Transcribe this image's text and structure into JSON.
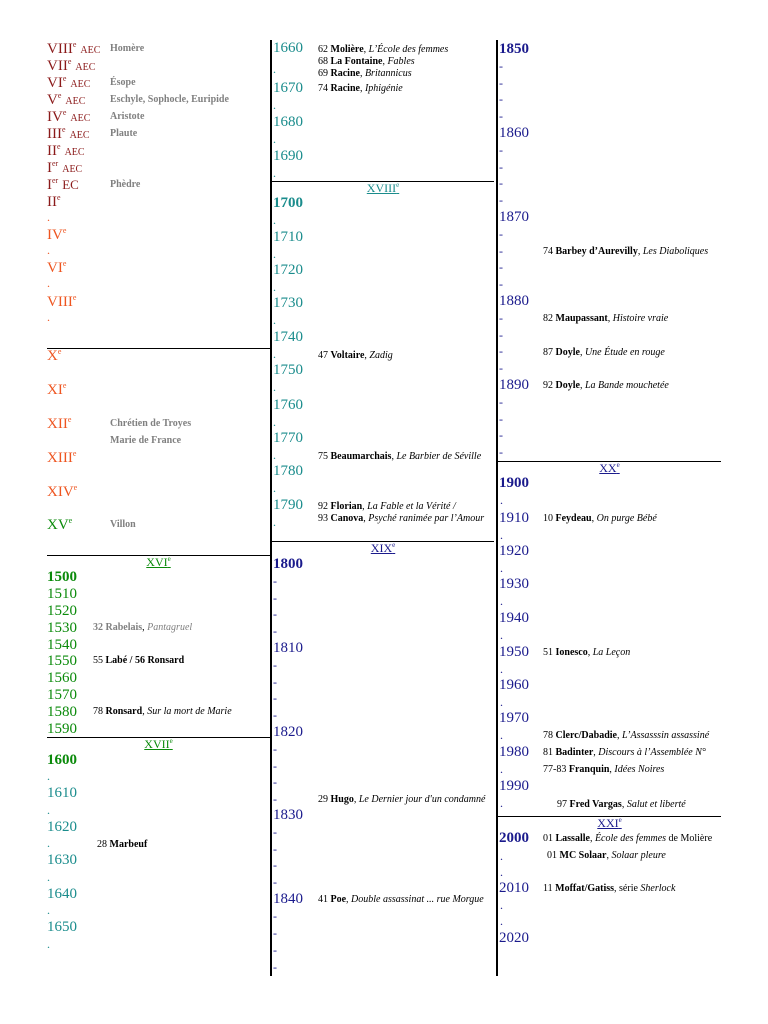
{
  "colors": {
    "dark_red": "#8b1a1a",
    "orange": "#ee5520",
    "green": "#0a8a0a",
    "teal": "#1a8c8c",
    "blue": "#1a1a8c",
    "gray": "#808080"
  },
  "col1": {
    "centuries": [
      {
        "num": "VIII",
        "sup": "e",
        "suffix": "AEC",
        "note": "Homère"
      },
      {
        "num": "VII",
        "sup": "e",
        "suffix": "AEC",
        "note": ""
      },
      {
        "num": "VI",
        "sup": "e",
        "suffix": "AEC",
        "note": "Ésope"
      },
      {
        "num": "V",
        "sup": "e",
        "suffix": "AEC",
        "note": "Eschyle, Sophocle, Euripide"
      },
      {
        "num": "IV",
        "sup": "e",
        "suffix": "AEC",
        "note": "Aristote"
      },
      {
        "num": "III",
        "sup": "e",
        "suffix": "AEC",
        "note": "Plaute"
      },
      {
        "num": "II",
        "sup": "e",
        "suffix": "AEC",
        "note": ""
      },
      {
        "num": "I",
        "sup": "er",
        "suffix": "AEC",
        "note": ""
      },
      {
        "num": "I",
        "sup": "er",
        "suffix": "EC",
        "note": "Phèdre"
      },
      {
        "num": "II",
        "sup": "e",
        "suffix": "",
        "note": ""
      },
      {
        "num": "IV",
        "sup": "e",
        "suffix": "",
        "note": ""
      },
      {
        "num": "VI",
        "sup": "e",
        "suffix": "",
        "note": ""
      },
      {
        "num": "VIII",
        "sup": "e",
        "suffix": "",
        "note": ""
      },
      {
        "num": "X",
        "sup": "e",
        "suffix": "",
        "note": ""
      },
      {
        "num": "XI",
        "sup": "e",
        "suffix": "",
        "note": ""
      },
      {
        "num": "XII",
        "sup": "e",
        "suffix": "",
        "note": "Chrétien de Troyes"
      },
      {
        "num": "",
        "sup": "",
        "suffix": "",
        "note": "Marie de France"
      },
      {
        "num": "XIII",
        "sup": "e",
        "suffix": "",
        "note": ""
      },
      {
        "num": "XIV",
        "sup": "e",
        "suffix": "",
        "note": ""
      },
      {
        "num": "XV",
        "sup": "e",
        "suffix": "",
        "note": "Villon"
      }
    ],
    "sec_xvi": "XVI",
    "years_1500s": [
      "1500",
      "1510",
      "1520",
      "1530",
      "1540",
      "1550",
      "1560",
      "1570",
      "1580",
      "1590"
    ],
    "ev_1532": {
      "yr": "32",
      "name": "Rabelais",
      "work": "Pantagruel"
    },
    "ev_1555": {
      "yr": "55",
      "name": "Labé",
      "sep": " / 56 ",
      "name2": "Ronsard"
    },
    "ev_1578": {
      "yr": "78",
      "name": "Ronsard",
      "work": "Sur la mort de Marie"
    },
    "sec_xvii": "XVII",
    "years_1600s": [
      "1600",
      "1610",
      "1620",
      "1630",
      "1640",
      "1650"
    ],
    "ev_1628": {
      "yr": "28",
      "name": "Marbeuf"
    },
    "dot": "."
  },
  "col2": {
    "years_1660": [
      "1660",
      "1670",
      "1680",
      "1690"
    ],
    "ev_1662": {
      "yr": "62",
      "name": "Molière",
      "work": "L’École des femmes"
    },
    "ev_1668": {
      "yr": "68",
      "name": "La Fontaine",
      "work": "Fables"
    },
    "ev_1669": {
      "yr": "69",
      "name": "Racine",
      "work": "Britannicus"
    },
    "ev_1674": {
      "yr": "74",
      "name": "Racine",
      "work": "Iphigénie"
    },
    "sec_xviii": "XVIII",
    "years_1700s": [
      "1700",
      "1710",
      "1720",
      "1730",
      "1740",
      "1750",
      "1760",
      "1770",
      "1780",
      "1790"
    ],
    "ev_1747": {
      "yr": "47",
      "name": "Voltaire",
      "work": "Zadig"
    },
    "ev_1775": {
      "yr": "75",
      "name": "Beaumarchais",
      "work": "Le Barbier de Séville"
    },
    "ev_1792": {
      "yr": "92",
      "name": "Florian",
      "work": "La Fable et la Vérité /"
    },
    "ev_1793": {
      "yr": "93",
      "name": "Canova",
      "work": "Psyché ranimée par l’Amour"
    },
    "sec_xix": "XIX",
    "years_1800s": [
      "1800",
      "1810",
      "1820",
      "1830",
      "1840"
    ],
    "ev_1829": {
      "yr": "29",
      "name": "Hugo",
      "work": "Le Dernier jour d'un condamné"
    },
    "ev_1841": {
      "yr": "41",
      "name": "Poe",
      "work": "Double assassinat ... rue Morgue"
    },
    "dash": "-",
    "dot": "."
  },
  "col3": {
    "years_1850s": [
      "1850",
      "1860",
      "1870",
      "1880",
      "1890"
    ],
    "ev_1874": {
      "yr": "74",
      "name": "Barbey d’Aurevilly",
      "work": "Les Diaboliques"
    },
    "ev_1882": {
      "yr": "82",
      "name": "Maupassant",
      "work": "Histoire vraie"
    },
    "ev_1887": {
      "yr": "87",
      "name": "Doyle",
      "work": "Une Étude en rouge"
    },
    "ev_1892": {
      "yr": "92",
      "name": "Doyle",
      "work": "La Bande mouchetée"
    },
    "sec_xx": "XX",
    "years_1900s": [
      "1900",
      "1910",
      "1920",
      "1930",
      "1940",
      "1950",
      "1960",
      "1970",
      "1980",
      "1990"
    ],
    "ev_1910": {
      "yr": "10",
      "name": "Feydeau",
      "work": "On purge Bébé"
    },
    "ev_1951": {
      "yr": "51",
      "name": "Ionesco",
      "work": "La Leçon"
    },
    "ev_1978": {
      "yr": "78",
      "name": "Clerc/Dabadie",
      "work": "L’Assasssin assassiné"
    },
    "ev_1981": {
      "yr": "81",
      "name": "Badinter",
      "work": "Discours à l’Assemblée N°"
    },
    "ev_1977": {
      "yr": "77-83",
      "name": "Franquin",
      "work": "Idées Noires"
    },
    "ev_1997": {
      "yr": "97",
      "name": "Fred Vargas",
      "work": "Salut et liberté"
    },
    "sec_xxi": "XXI",
    "years_2000s": [
      "2000",
      "2010",
      "2020"
    ],
    "ev_2001a": {
      "yr": "01",
      "name": "Lassalle",
      "work": "École des femmes",
      "tail": " de Molière"
    },
    "ev_2001b": {
      "yr": "01",
      "name": "MC Solaar",
      "work": "Solaar pleure"
    },
    "ev_2011": {
      "yr": "11",
      "name": "Moffat/Gatiss",
      "pre": "série ",
      "work": "Sherlock"
    },
    "dash": "-",
    "dot": "."
  },
  "sup_e": "e"
}
